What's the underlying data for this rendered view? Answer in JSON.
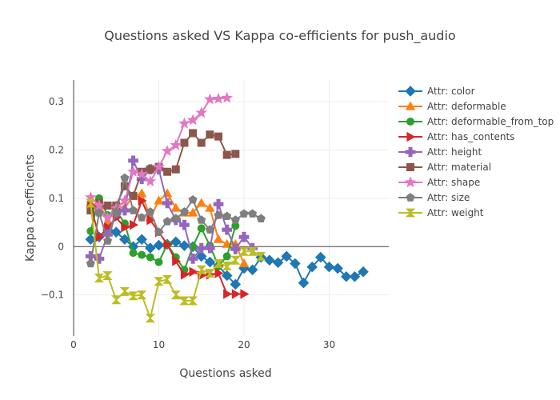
{
  "chart_data": {
    "type": "line",
    "title": "Questions asked VS Kappa co-efficients for push_audio",
    "xlabel": "Questions asked",
    "ylabel": "Kappa co-efficients",
    "xlim": [
      0,
      37
    ],
    "ylim": [
      -0.185,
      0.345
    ],
    "xticks": [
      0,
      10,
      20,
      30
    ],
    "xtick_labels": [
      "0",
      "10",
      "20",
      "30"
    ],
    "yticks": [
      -0.1,
      0,
      0.1,
      0.2,
      0.3
    ],
    "ytick_labels": [
      "−0.1",
      "0",
      "0.1",
      "0.2",
      "0.3"
    ],
    "grid": true,
    "legend_position": "right",
    "series": [
      {
        "name": "Attr: color",
        "color": "#1f77b4",
        "marker": "diamond",
        "x": [
          2,
          3,
          4,
          5,
          6,
          7,
          8,
          9,
          10,
          11,
          12,
          13,
          14,
          15,
          16,
          17,
          18,
          19,
          20,
          21,
          22,
          23,
          24,
          25,
          26,
          27,
          28,
          29,
          30,
          31,
          32,
          33,
          34
        ],
        "y": [
          0.015,
          0.02,
          0.035,
          0.03,
          0.015,
          0.0,
          0.015,
          -0.003,
          0.003,
          0.005,
          0.01,
          0.002,
          0.0,
          -0.02,
          -0.032,
          -0.04,
          -0.06,
          -0.078,
          -0.045,
          -0.048,
          -0.022,
          -0.028,
          -0.033,
          -0.02,
          -0.035,
          -0.075,
          -0.042,
          -0.022,
          -0.042,
          -0.045,
          -0.062,
          -0.062,
          -0.052
        ]
      },
      {
        "name": "Attr: deformable",
        "color": "#ff7f0e",
        "marker": "triangle-up",
        "x": [
          2,
          3,
          4,
          5,
          6,
          7,
          8,
          9,
          10,
          11,
          12,
          13,
          14,
          15,
          16,
          17,
          18,
          19,
          20
        ],
        "y": [
          0.09,
          0.085,
          0.05,
          0.085,
          0.08,
          0.105,
          0.11,
          0.06,
          0.095,
          0.11,
          0.08,
          0.07,
          0.07,
          0.09,
          0.08,
          0.015,
          0.005,
          0.005,
          -0.035
        ]
      },
      {
        "name": "Attr: deformable_from_top",
        "color": "#2ca02c",
        "marker": "circle",
        "x": [
          2,
          3,
          4,
          5,
          6,
          7,
          8,
          9,
          10,
          11,
          12,
          13,
          14,
          15,
          16,
          17,
          18,
          19
        ],
        "y": [
          0.032,
          0.1,
          0.065,
          0.075,
          0.048,
          -0.013,
          -0.017,
          -0.022,
          -0.032,
          0.005,
          -0.022,
          -0.048,
          0.0,
          0.038,
          0.002,
          -0.04,
          -0.02,
          0.043
        ]
      },
      {
        "name": "Attr: has_contents",
        "color": "#d62728",
        "marker": "triangle-right",
        "x": [
          2,
          3,
          4,
          5,
          6,
          7,
          8,
          9,
          10,
          11,
          12,
          13,
          14,
          15,
          16,
          17,
          18,
          19,
          20
        ],
        "y": [
          0.085,
          0.02,
          0.04,
          0.06,
          0.04,
          0.045,
          0.095,
          0.055,
          0.03,
          0.005,
          -0.03,
          -0.058,
          -0.052,
          -0.06,
          -0.058,
          -0.055,
          -0.098,
          -0.098,
          -0.098
        ]
      },
      {
        "name": "Attr: height",
        "color": "#9467bd",
        "marker": "cross",
        "x": [
          2,
          3,
          4,
          5,
          6,
          7,
          8,
          9,
          10,
          11,
          12,
          13,
          14,
          15,
          16,
          17,
          18,
          19,
          20,
          21
        ],
        "y": [
          -0.02,
          -0.025,
          0.025,
          0.07,
          0.075,
          0.178,
          0.14,
          0.16,
          0.16,
          0.09,
          0.055,
          0.045,
          -0.025,
          -0.003,
          -0.003,
          0.088,
          0.035,
          -0.005,
          0.02,
          -0.003
        ]
      },
      {
        "name": "Attr: material",
        "color": "#8c564b",
        "marker": "square",
        "x": [
          2,
          3,
          4,
          5,
          6,
          7,
          8,
          9,
          10,
          11,
          12,
          13,
          14,
          15,
          16,
          17,
          18,
          19
        ],
        "y": [
          0.075,
          0.09,
          0.085,
          0.085,
          0.125,
          0.105,
          0.155,
          0.16,
          0.165,
          0.155,
          0.16,
          0.215,
          0.235,
          0.215,
          0.232,
          0.228,
          0.19,
          0.192
        ]
      },
      {
        "name": "Attr: shape",
        "color": "#e377c2",
        "marker": "star",
        "x": [
          2,
          3,
          4,
          5,
          6,
          7,
          8,
          9,
          10,
          11,
          12,
          13,
          14,
          15,
          16,
          17,
          18
        ],
        "y": [
          0.102,
          0.085,
          0.06,
          0.08,
          0.095,
          0.155,
          0.15,
          0.135,
          0.165,
          0.198,
          0.21,
          0.255,
          0.262,
          0.277,
          0.305,
          0.306,
          0.308
        ]
      },
      {
        "name": "Attr: size",
        "color": "#7f7f7f",
        "marker": "pentagon",
        "x": [
          2,
          3,
          4,
          5,
          6,
          7,
          8,
          9,
          10,
          11,
          12,
          13,
          14,
          15,
          16,
          17,
          18,
          19,
          20,
          21,
          22
        ],
        "y": [
          -0.035,
          0.07,
          0.012,
          0.072,
          0.142,
          0.075,
          0.06,
          0.072,
          0.03,
          0.052,
          0.058,
          0.072,
          0.097,
          0.055,
          0.035,
          0.065,
          0.063,
          0.055,
          0.068,
          0.068,
          0.058
        ]
      },
      {
        "name": "Attr: weight",
        "color": "#bcbd22",
        "marker": "hourglass",
        "x": [
          2,
          3,
          4,
          5,
          6,
          7,
          8,
          9,
          10,
          11,
          12,
          13,
          14,
          15,
          16,
          17,
          18,
          19,
          20,
          21,
          22
        ],
        "y": [
          0.09,
          -0.065,
          -0.06,
          -0.11,
          -0.093,
          -0.102,
          -0.1,
          -0.148,
          -0.072,
          -0.068,
          -0.1,
          -0.112,
          -0.112,
          -0.048,
          -0.055,
          -0.035,
          -0.04,
          -0.028,
          -0.01,
          -0.01,
          -0.02
        ]
      }
    ]
  }
}
